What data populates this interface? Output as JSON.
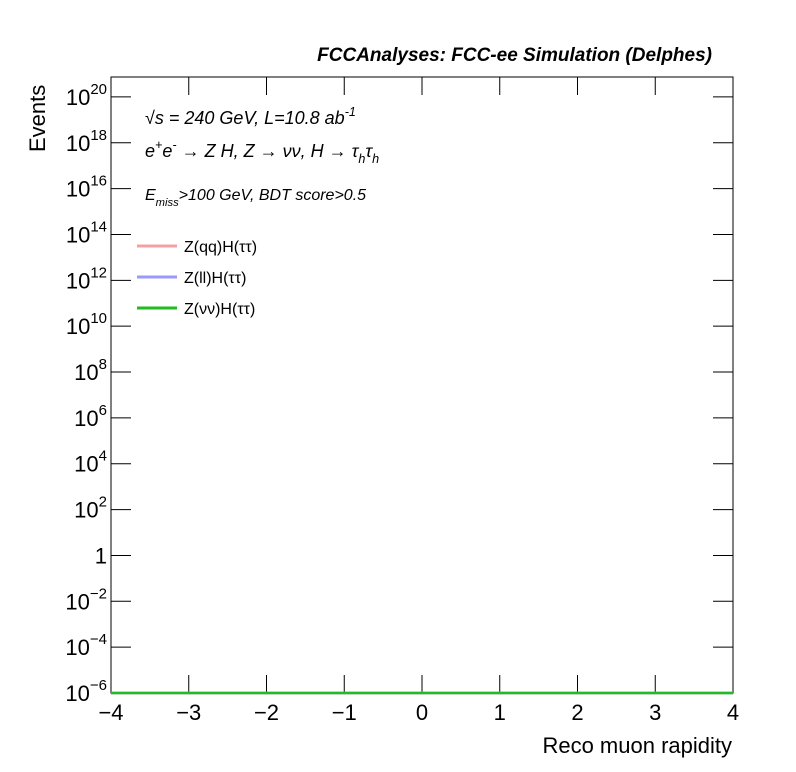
{
  "chart_data": {
    "type": "line",
    "title": "FCCAnalyses: FCC-ee Simulation (Delphes)",
    "x_label": "Reco muon rapidity",
    "y_label": "Events",
    "annotations": [
      {
        "parts": [
          {
            "text": "√s = 240 GeV, L=10.8 ab"
          },
          {
            "text": "-1",
            "sup": true
          }
        ]
      },
      {
        "parts": [
          {
            "text": "e"
          },
          {
            "text": "+",
            "sup": true
          },
          {
            "text": "e"
          },
          {
            "text": "-",
            "sup": true
          },
          {
            "text": " → Z H, Z  → νν, H → τ"
          },
          {
            "text": "h",
            "sub": true
          },
          {
            "text": "τ"
          },
          {
            "text": "h",
            "sub": true
          }
        ]
      },
      {
        "parts": [
          {
            "text": "E"
          },
          {
            "text": "miss",
            "sub": true
          },
          {
            "text": ">100 GeV, BDT score>0.5"
          }
        ]
      }
    ],
    "x": [
      -4,
      4
    ],
    "series": [
      {
        "name": "Z(qq)H(ττ)",
        "color": "#f4a0a0",
        "values": [
          1e-06,
          1e-06
        ]
      },
      {
        "name": "Z(ll)H(ττ)",
        "color": "#9999ff",
        "values": [
          1e-06,
          1e-06
        ]
      },
      {
        "name": "Z(νν)H(ττ)",
        "color": "#22bb22",
        "values": [
          1e-06,
          1e-06
        ]
      }
    ],
    "xlim": [
      -4,
      4
    ],
    "xticks": [
      {
        "value": -4,
        "label": "−4"
      },
      {
        "value": -3,
        "label": "−3"
      },
      {
        "value": -2,
        "label": "−2"
      },
      {
        "value": -1,
        "label": "−1"
      },
      0,
      1,
      2,
      3,
      4
    ],
    "ylim": [
      1e-06,
      7.4e+20
    ],
    "log_y": true,
    "yticks": [
      {
        "value": 1e-06,
        "label": "10",
        "exponent": "−6"
      },
      {
        "value": 0.0001,
        "label": "10",
        "exponent": "−4"
      },
      {
        "value": 0.01,
        "label": "10",
        "exponent": "−2"
      },
      1,
      {
        "value": 100,
        "label": "10",
        "exponent": "2"
      },
      {
        "value": 10000.0,
        "label": "10",
        "exponent": "4"
      },
      {
        "value": 1000000.0,
        "label": "10",
        "exponent": "6"
      },
      {
        "value": 100000000.0,
        "label": "10",
        "exponent": "8"
      },
      {
        "value": 10000000000.0,
        "label": "10",
        "exponent": "10"
      },
      {
        "value": 1000000000000.0,
        "label": "10",
        "exponent": "12"
      },
      {
        "value": 100000000000000.0,
        "label": "10",
        "exponent": "14"
      },
      {
        "value": 1e+16,
        "label": "10",
        "exponent": "16"
      },
      {
        "value": 1e+18,
        "label": "10",
        "exponent": "18"
      },
      {
        "value": 1e+20,
        "label": "10",
        "exponent": "20"
      }
    ],
    "legend": "upper left"
  }
}
